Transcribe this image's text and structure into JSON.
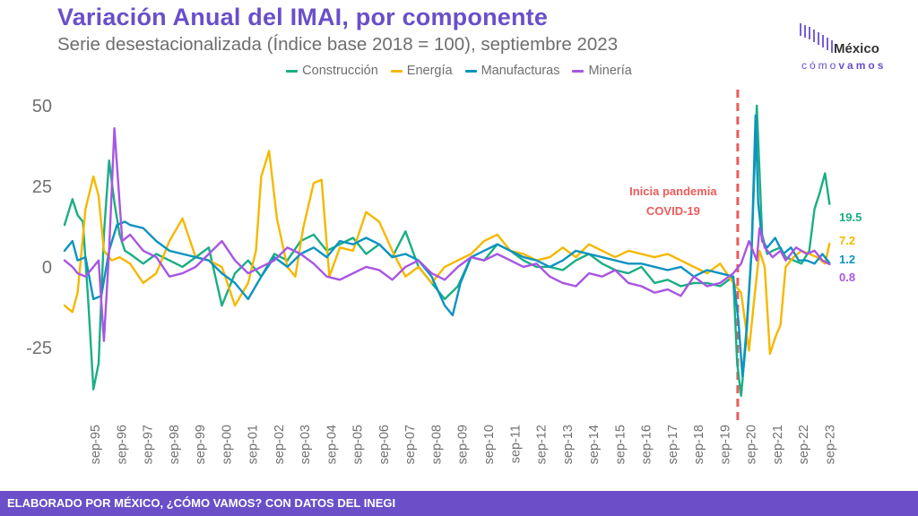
{
  "header": {
    "title": "Variación Anual del IMAI, por componente",
    "subtitle": "Serie desestacionalizada (Índice base 2018 = 100), septiembre 2023"
  },
  "logo": {
    "word1": "México",
    "word2a": "cómo",
    "word2b": "vamos"
  },
  "footer": {
    "text": "ELABORADO POR MÉXICO, ¿CÓMO VAMOS? CON DATOS DEL INEGI"
  },
  "chart_data": {
    "type": "line",
    "title": "Variación Anual del IMAI, por componente",
    "subtitle": "Serie desestacionalizada (Índice base 2018 = 100), septiembre 2023",
    "xlabel": "",
    "ylabel": "",
    "ylim": [
      -47,
      55
    ],
    "xlim": [
      1994.5,
      2023.9
    ],
    "yticks": [
      50,
      25,
      0,
      -25
    ],
    "ytick_labels": [
      "50",
      "25",
      "0",
      "-25"
    ],
    "xticks": [
      1995.67,
      1996.67,
      1997.67,
      1998.67,
      1999.67,
      2000.67,
      2001.67,
      2002.67,
      2003.67,
      2004.67,
      2005.67,
      2006.67,
      2007.67,
      2008.67,
      2009.67,
      2010.67,
      2011.67,
      2012.67,
      2013.67,
      2014.67,
      2015.67,
      2016.67,
      2017.67,
      2018.67,
      2019.67,
      2020.67,
      2021.67,
      2022.67,
      2023.67
    ],
    "xtick_labels": [
      "sep-95",
      "sep-96",
      "sep-97",
      "sep-98",
      "sep-99",
      "sep-00",
      "sep-01",
      "sep-02",
      "sep-03",
      "sep-04",
      "sep-05",
      "sep-06",
      "sep-07",
      "sep-08",
      "sep-09",
      "sep-10",
      "sep-11",
      "sep-12",
      "sep-13",
      "sep-14",
      "sep-15",
      "sep-16",
      "sep-17",
      "sep-18",
      "sep-19",
      "sep-20",
      "sep-21",
      "sep-22",
      "sep-23"
    ],
    "grid": false,
    "legend_position": "top-center",
    "annotation": {
      "x": 2020.17,
      "label_line1": "Inicia pandemia",
      "label_line2": "COVID-19",
      "color": "#ec5b5b"
    },
    "series": [
      {
        "name": "Construcción",
        "color": "#1aae84",
        "end_label": "19.5",
        "x": [
          1994.5,
          1994.8,
          1995.0,
          1995.2,
          1995.4,
          1995.6,
          1995.8,
          1996.0,
          1996.2,
          1996.4,
          1996.6,
          1996.8,
          1997.0,
          1997.5,
          1998.0,
          1998.5,
          1999.0,
          1999.5,
          2000.0,
          2000.5,
          2001.0,
          2001.5,
          2002.0,
          2002.5,
          2003.0,
          2003.5,
          2004.0,
          2004.5,
          2005.0,
          2005.5,
          2006.0,
          2006.5,
          2007.0,
          2007.5,
          2008.0,
          2008.5,
          2009.0,
          2009.5,
          2010.0,
          2010.5,
          2011.0,
          2011.5,
          2012.0,
          2012.5,
          2013.0,
          2013.5,
          2014.0,
          2014.5,
          2015.0,
          2015.5,
          2016.0,
          2016.5,
          2017.0,
          2017.5,
          2018.0,
          2018.5,
          2019.0,
          2019.5,
          2020.0,
          2020.15,
          2020.3,
          2020.5,
          2020.7,
          2020.9,
          2021.1,
          2021.3,
          2021.5,
          2021.8,
          2022.0,
          2022.3,
          2022.6,
          2022.9,
          2023.1,
          2023.3,
          2023.5,
          2023.67
        ],
        "y": [
          13,
          21,
          16,
          14,
          -10,
          -38,
          -30,
          10,
          33,
          20,
          10,
          5,
          4,
          1,
          4,
          2,
          0,
          3,
          6,
          -12,
          -2,
          2,
          -3,
          4,
          2,
          8,
          10,
          5,
          7,
          9,
          4,
          7,
          3,
          11,
          0,
          -5,
          -10,
          -6,
          3,
          2,
          7,
          5,
          2,
          0,
          0,
          -1,
          2,
          4,
          1,
          -1,
          -2,
          0,
          -5,
          -4,
          -6,
          -5,
          -5,
          -6,
          -3,
          -30,
          -40,
          -22,
          5,
          50,
          10,
          4,
          5,
          6,
          3,
          2,
          1,
          5,
          18,
          23,
          29,
          19.5
        ]
      },
      {
        "name": "Energía",
        "color": "#f5b800",
        "end_label": "7.2",
        "x": [
          1994.5,
          1994.8,
          1995.0,
          1995.3,
          1995.6,
          1995.8,
          1996.0,
          1996.3,
          1996.6,
          1997.0,
          1997.5,
          1998.0,
          1998.5,
          1999.0,
          1999.5,
          2000.0,
          2000.5,
          2001.0,
          2001.5,
          2001.8,
          2002.0,
          2002.3,
          2002.6,
          2003.0,
          2003.3,
          2003.6,
          2004.0,
          2004.3,
          2004.6,
          2005.0,
          2005.5,
          2006.0,
          2006.5,
          2007.0,
          2007.5,
          2008.0,
          2008.5,
          2009.0,
          2009.5,
          2010.0,
          2010.5,
          2011.0,
          2011.5,
          2012.0,
          2012.5,
          2013.0,
          2013.5,
          2014.0,
          2014.5,
          2015.0,
          2015.5,
          2016.0,
          2016.5,
          2017.0,
          2017.5,
          2018.0,
          2018.5,
          2019.0,
          2019.5,
          2020.0,
          2020.3,
          2020.6,
          2020.8,
          2021.0,
          2021.2,
          2021.4,
          2021.6,
          2021.8,
          2022.0,
          2022.3,
          2022.6,
          2022.9,
          2023.2,
          2023.5,
          2023.67
        ],
        "y": [
          -12,
          -14,
          -8,
          18,
          28,
          22,
          5,
          2,
          3,
          1,
          -5,
          -2,
          8,
          15,
          3,
          2,
          0,
          -12,
          -5,
          5,
          28,
          36,
          15,
          0,
          -3,
          12,
          26,
          27,
          -3,
          6,
          5,
          17,
          14,
          5,
          -3,
          0,
          -5,
          0,
          2,
          4,
          8,
          10,
          5,
          4,
          2,
          3,
          6,
          3,
          7,
          5,
          3,
          5,
          4,
          3,
          4,
          2,
          0,
          -2,
          1,
          -5,
          -8,
          -26,
          -10,
          5,
          0,
          -27,
          -22,
          -18,
          0,
          3,
          5,
          4,
          3,
          1,
          7.2
        ]
      },
      {
        "name": "Manufacturas",
        "color": "#0d93c1",
        "end_label": "1.2",
        "x": [
          1994.5,
          1994.8,
          1995.0,
          1995.3,
          1995.6,
          1995.9,
          1996.2,
          1996.5,
          1996.8,
          1997.0,
          1997.5,
          1998.0,
          1998.5,
          1999.0,
          1999.5,
          2000.0,
          2000.5,
          2001.0,
          2001.5,
          2002.0,
          2002.5,
          2003.0,
          2003.5,
          2004.0,
          2004.5,
          2005.0,
          2005.5,
          2006.0,
          2006.5,
          2007.0,
          2007.5,
          2008.0,
          2008.5,
          2009.0,
          2009.3,
          2009.6,
          2010.0,
          2010.5,
          2011.0,
          2011.5,
          2012.0,
          2012.5,
          2013.0,
          2013.5,
          2014.0,
          2014.5,
          2015.0,
          2015.5,
          2016.0,
          2016.5,
          2017.0,
          2017.5,
          2018.0,
          2018.5,
          2019.0,
          2019.5,
          2020.0,
          2020.2,
          2020.35,
          2020.5,
          2020.7,
          2020.85,
          2020.95,
          2021.1,
          2021.3,
          2021.6,
          2021.9,
          2022.2,
          2022.5,
          2022.8,
          2023.1,
          2023.4,
          2023.67
        ],
        "y": [
          5,
          8,
          2,
          3,
          -10,
          -9,
          5,
          13,
          14,
          13,
          12,
          8,
          5,
          4,
          3,
          2,
          -2,
          -5,
          -10,
          -3,
          3,
          0,
          4,
          6,
          3,
          8,
          7,
          9,
          7,
          3,
          4,
          2,
          -3,
          -12,
          -15,
          -5,
          3,
          5,
          7,
          5,
          3,
          2,
          0,
          2,
          5,
          4,
          3,
          2,
          1,
          1,
          0,
          -1,
          0,
          -3,
          -1,
          -2,
          -3,
          -17,
          -34,
          -20,
          5,
          47,
          20,
          8,
          6,
          9,
          4,
          6,
          2,
          2,
          1,
          4,
          1.2
        ]
      },
      {
        "name": "Minería",
        "color": "#a855e3",
        "end_label": "0.8",
        "x": [
          1994.5,
          1994.8,
          1995.0,
          1995.3,
          1995.6,
          1995.8,
          1996.0,
          1996.2,
          1996.4,
          1996.7,
          1997.0,
          1997.5,
          1998.0,
          1998.5,
          1999.0,
          1999.5,
          2000.0,
          2000.5,
          2001.0,
          2001.5,
          2002.0,
          2002.5,
          2003.0,
          2003.5,
          2004.0,
          2004.5,
          2005.0,
          2005.5,
          2006.0,
          2006.5,
          2007.0,
          2007.5,
          2008.0,
          2008.5,
          2009.0,
          2009.5,
          2010.0,
          2010.5,
          2011.0,
          2011.5,
          2012.0,
          2012.5,
          2013.0,
          2013.5,
          2014.0,
          2014.5,
          2015.0,
          2015.5,
          2016.0,
          2016.5,
          2017.0,
          2017.5,
          2018.0,
          2018.5,
          2019.0,
          2019.5,
          2020.0,
          2020.3,
          2020.6,
          2020.9,
          2021.0,
          2021.2,
          2021.5,
          2021.8,
          2022.0,
          2022.4,
          2022.8,
          2023.1,
          2023.4,
          2023.67
        ],
        "y": [
          2,
          0,
          -2,
          -3,
          0,
          2,
          -23,
          5,
          43,
          8,
          10,
          5,
          3,
          -3,
          -2,
          0,
          4,
          8,
          2,
          -2,
          0,
          2,
          6,
          4,
          1,
          -3,
          -4,
          -2,
          0,
          -1,
          -4,
          0,
          2,
          -2,
          -4,
          0,
          3,
          2,
          4,
          2,
          0,
          1,
          -3,
          -5,
          -6,
          -2,
          -3,
          -1,
          -5,
          -6,
          -8,
          -7,
          -9,
          -3,
          -6,
          -5,
          -2,
          1,
          8,
          2,
          12,
          6,
          3,
          5,
          2,
          6,
          4,
          5,
          2,
          0.8
        ]
      }
    ]
  }
}
